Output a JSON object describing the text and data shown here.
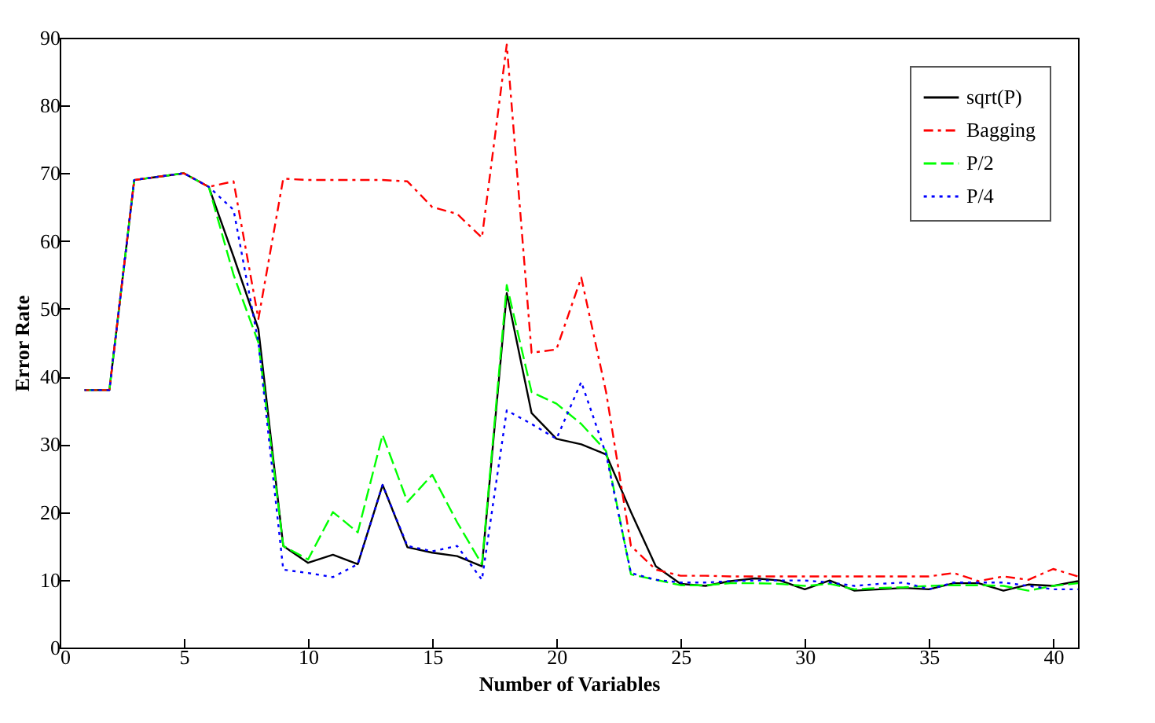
{
  "chart_data": {
    "type": "line",
    "xlabel": "Number of Variables",
    "ylabel": "Error Rate",
    "x": [
      1,
      2,
      3,
      4,
      5,
      6,
      7,
      8,
      9,
      10,
      11,
      12,
      13,
      14,
      15,
      16,
      17,
      18,
      19,
      20,
      21,
      22,
      23,
      24,
      25,
      26,
      27,
      28,
      29,
      30,
      31,
      32,
      33,
      34,
      35,
      36,
      37,
      38,
      39,
      40,
      41
    ],
    "series": [
      {
        "name": "sqrt(P)",
        "color": "#000000",
        "line_style": "solid",
        "values": [
          38,
          38,
          69,
          69.5,
          70,
          68,
          57.7,
          47,
          15,
          12.5,
          13.7,
          12.3,
          24,
          14.8,
          14,
          13.5,
          12,
          52.3,
          34.6,
          30.8,
          30,
          28.5,
          20,
          12,
          9.4,
          9.1,
          9.8,
          10.2,
          9.9,
          8.6,
          9.9,
          8.4,
          8.6,
          8.8,
          8.6,
          9.5,
          9.5,
          8.4,
          9.3,
          9.1,
          9.8
        ]
      },
      {
        "name": "Bagging",
        "color": "#ff0000",
        "line_style": "dashdot",
        "values": [
          38,
          38,
          69,
          69.5,
          70,
          68,
          68.8,
          48.5,
          69.2,
          69,
          69,
          69,
          69,
          68.8,
          65,
          64,
          60.5,
          89,
          43.5,
          44,
          54.6,
          37.7,
          15,
          11.5,
          10.6,
          10.6,
          10.5,
          10.5,
          10.5,
          10.5,
          10.5,
          10.5,
          10.5,
          10.5,
          10.5,
          11,
          9.8,
          10.5,
          10,
          11.6,
          10.5
        ]
      },
      {
        "name": "P/2",
        "color": "#00ff00",
        "line_style": "dashed",
        "values": [
          38,
          38,
          69,
          69.5,
          70,
          68,
          55,
          45,
          15,
          13,
          20,
          17,
          31.4,
          21.5,
          25.5,
          18.5,
          12.3,
          53.5,
          37.7,
          36,
          33,
          29,
          10.8,
          10,
          9.2,
          9.2,
          9.5,
          9.5,
          9.4,
          9.1,
          9.4,
          8.6,
          8.8,
          8.9,
          9.1,
          9.2,
          9.2,
          9.1,
          8.4,
          9.1,
          9.5
        ]
      },
      {
        "name": "P/4",
        "color": "#0000ff",
        "line_style": "dotted",
        "values": [
          38,
          38,
          69,
          69.5,
          70,
          68,
          64.6,
          45,
          11.5,
          11,
          10.4,
          12.3,
          24,
          15,
          14.2,
          15,
          10,
          35,
          33,
          30.8,
          39.2,
          28.5,
          11,
          10,
          9.6,
          9.6,
          9.8,
          9.9,
          9.9,
          9.9,
          9.6,
          9.1,
          9.4,
          9.6,
          8.6,
          9.6,
          9.6,
          9.6,
          9.1,
          8.6,
          8.6
        ]
      }
    ],
    "xlim": [
      0,
      41
    ],
    "xticks": [
      0,
      5,
      10,
      15,
      20,
      25,
      30,
      35,
      40
    ],
    "ylim": [
      0,
      90
    ],
    "yticks": [
      0,
      10,
      20,
      30,
      40,
      50,
      60,
      70,
      80,
      90
    ],
    "grid": false,
    "legend": "top right",
    "marker": "none"
  }
}
